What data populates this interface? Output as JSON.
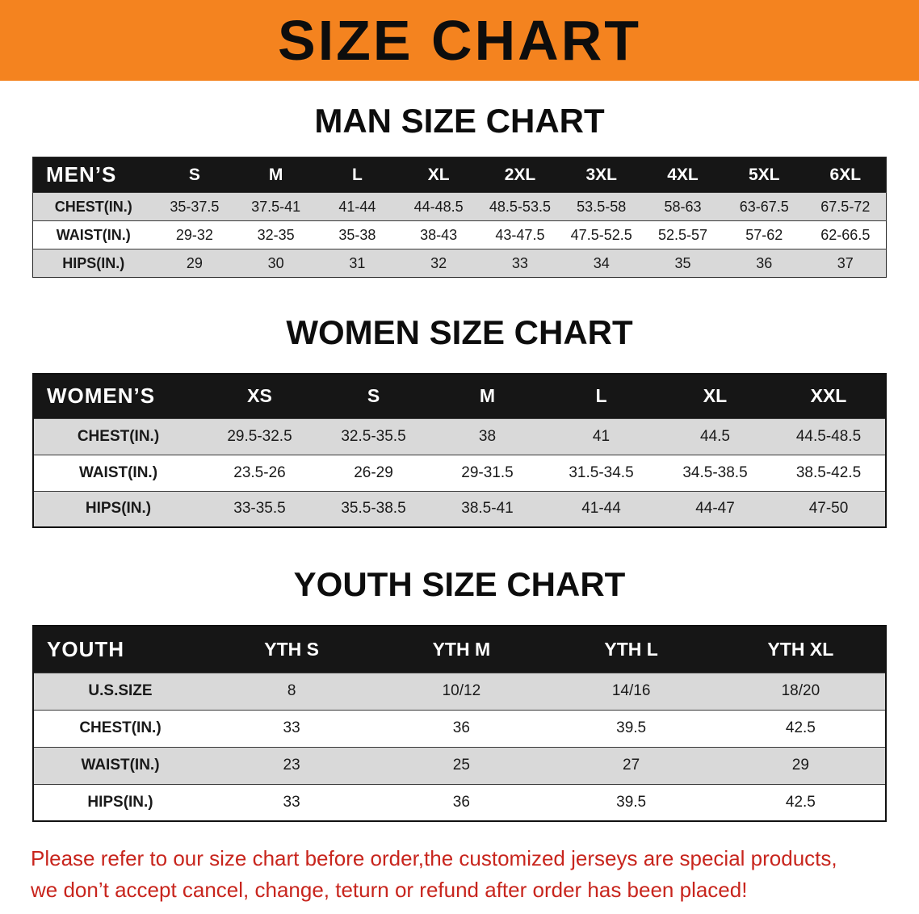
{
  "banner": {
    "title": "SIZE CHART",
    "bg_color": "#F4831F",
    "text_color": "#0D0D0D"
  },
  "header_bar_color": "#161616",
  "row_stripe_color": "#D9D9D9",
  "chart_data": [
    {
      "type": "table",
      "title": "MAN SIZE CHART",
      "header": [
        "MEN’S",
        "S",
        "M",
        "L",
        "XL",
        "2XL",
        "3XL",
        "4XL",
        "5XL",
        "6XL"
      ],
      "rows": [
        {
          "label": "CHEST(IN.)",
          "values": [
            "35-37.5",
            "37.5-41",
            "41-44",
            "44-48.5",
            "48.5-53.5",
            "53.5-58",
            "58-63",
            "63-67.5",
            "67.5-72"
          ]
        },
        {
          "label": "WAIST(IN.)",
          "values": [
            "29-32",
            "32-35",
            "35-38",
            "38-43",
            "43-47.5",
            "47.5-52.5",
            "52.5-57",
            "57-62",
            "62-66.5"
          ]
        },
        {
          "label": "HIPS(IN.)",
          "values": [
            "29",
            "30",
            "31",
            "32",
            "33",
            "34",
            "35",
            "36",
            "37"
          ]
        }
      ]
    },
    {
      "type": "table",
      "title": "WOMEN SIZE CHART",
      "header": [
        "WOMEN’S",
        "XS",
        "S",
        "M",
        "L",
        "XL",
        "XXL"
      ],
      "rows": [
        {
          "label": "CHEST(IN.)",
          "values": [
            "29.5-32.5",
            "32.5-35.5",
            "38",
            "41",
            "44.5",
            "44.5-48.5"
          ]
        },
        {
          "label": "WAIST(IN.)",
          "values": [
            "23.5-26",
            "26-29",
            "29-31.5",
            "31.5-34.5",
            "34.5-38.5",
            "38.5-42.5"
          ]
        },
        {
          "label": "HIPS(IN.)",
          "values": [
            "33-35.5",
            "35.5-38.5",
            "38.5-41",
            "41-44",
            "44-47",
            "47-50"
          ]
        }
      ]
    },
    {
      "type": "table",
      "title": "YOUTH SIZE CHART",
      "header": [
        "YOUTH",
        "YTH S",
        "YTH M",
        "YTH L",
        "YTH XL"
      ],
      "rows": [
        {
          "label": "U.S.SIZE",
          "values": [
            "8",
            "10/12",
            "14/16",
            "18/20"
          ]
        },
        {
          "label": "CHEST(IN.)",
          "values": [
            "33",
            "36",
            "39.5",
            "42.5"
          ]
        },
        {
          "label": "WAIST(IN.)",
          "values": [
            "23",
            "25",
            "27",
            "29"
          ]
        },
        {
          "label": "HIPS(IN.)",
          "values": [
            "33",
            "36",
            "39.5",
            "42.5"
          ]
        }
      ]
    }
  ],
  "footer": {
    "line1": "Please refer to our size chart before order,the customized jerseys are special products,",
    "line2": "we don’t accept cancel, change, teturn or refund after order has been placed!",
    "text_color": "#C8251D"
  }
}
